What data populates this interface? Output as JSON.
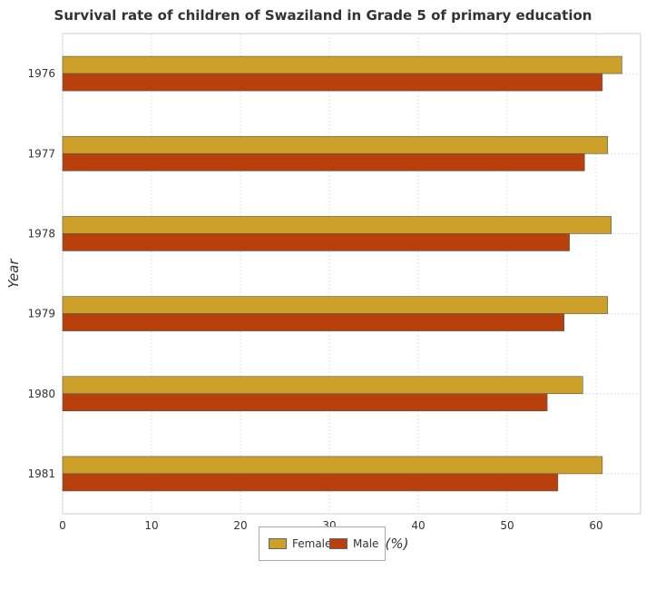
{
  "chart_data": {
    "type": "bar",
    "orientation": "horizontal",
    "title": "Survival rate of children of Swaziland in Grade 5 of primary education",
    "xlabel": "Survival Rate(%)",
    "ylabel": "Year",
    "categories": [
      "1976",
      "1977",
      "1978",
      "1979",
      "1980",
      "1981"
    ],
    "series": [
      {
        "name": "Female",
        "color": "#cca029",
        "values": [
          62.9,
          61.3,
          61.7,
          61.3,
          58.5,
          60.7
        ]
      },
      {
        "name": "Male",
        "color": "#b8400c",
        "values": [
          60.7,
          58.7,
          57.0,
          56.4,
          54.5,
          55.7
        ]
      }
    ],
    "xlim": [
      0,
      65
    ],
    "xticks": [
      0,
      10,
      20,
      30,
      40,
      50,
      60
    ],
    "grid": true,
    "legend_position": "bottom"
  }
}
